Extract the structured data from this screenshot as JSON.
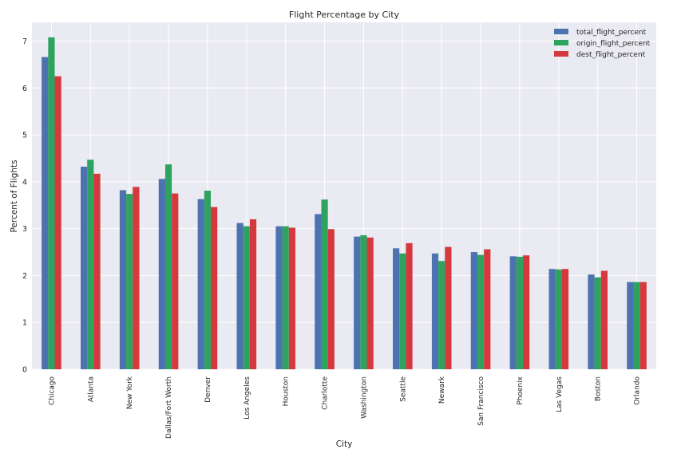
{
  "chart_data": {
    "type": "bar",
    "title": "Flight Percentage by City",
    "xlabel": "City",
    "ylabel": "Percent of Flights",
    "ylim": [
      0,
      7.4
    ],
    "yticks": [
      0,
      1,
      2,
      3,
      4,
      5,
      6,
      7
    ],
    "grid": true,
    "legend_position": "top-right",
    "categories": [
      "Chicago",
      "Atlanta",
      "New York",
      "Dallas/Fort Worth",
      "Denver",
      "Los Angeles",
      "Houston",
      "Charlotte",
      "Washington",
      "Seattle",
      "Newark",
      "San Francisco",
      "Phoenix",
      "Las Vegas",
      "Boston",
      "Orlando"
    ],
    "series": [
      {
        "name": "total_flight_percent",
        "color": "#4c72b0",
        "values": [
          6.66,
          4.32,
          3.82,
          4.06,
          3.63,
          3.12,
          3.05,
          3.31,
          2.83,
          2.58,
          2.47,
          2.5,
          2.41,
          2.14,
          2.02,
          1.86
        ]
      },
      {
        "name": "origin_flight_percent",
        "color": "#2ea35f",
        "values": [
          7.08,
          4.47,
          3.74,
          4.37,
          3.81,
          3.05,
          3.05,
          3.62,
          2.86,
          2.47,
          2.31,
          2.44,
          2.4,
          2.13,
          1.96,
          1.86
        ]
      },
      {
        "name": "dest_flight_percent",
        "color": "#d5393e",
        "values": [
          6.25,
          4.17,
          3.89,
          3.75,
          3.46,
          3.2,
          3.02,
          2.99,
          2.81,
          2.69,
          2.61,
          2.56,
          2.43,
          2.14,
          2.1,
          1.86
        ]
      }
    ]
  }
}
